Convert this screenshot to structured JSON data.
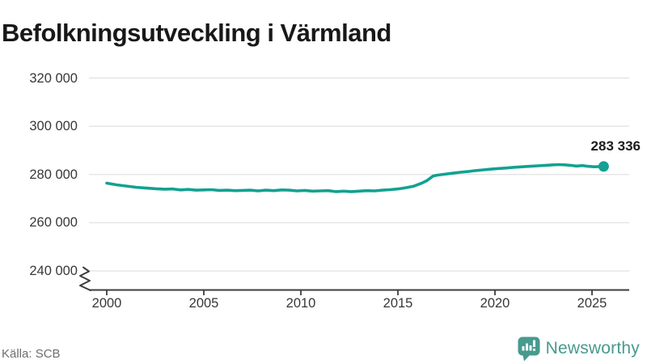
{
  "title": "Befolkningsutveckling i Värmland",
  "end_label": "283 336",
  "footer": {
    "source": "Källa: SCB",
    "brand": "Newsworthy"
  },
  "colors": {
    "line": "#12a192",
    "brand_teal": "#479a8e",
    "grid": "#e4e4e4",
    "axis": "#3d3d3d",
    "tick_text": "#383838",
    "title_text": "#181818",
    "source_text": "#6e6e6e"
  },
  "chart_data": {
    "type": "line",
    "title": "Befolkningsutveckling i Värmland",
    "xlabel": "",
    "ylabel": "",
    "grid": "horizontal",
    "legend_position": "none",
    "axis_break": true,
    "xlim": [
      1999.5,
      2026.5
    ],
    "ylim": [
      240000,
      330000
    ],
    "x_ticks": [
      {
        "value": 2000,
        "label": "2000"
      },
      {
        "value": 2005,
        "label": "2005"
      },
      {
        "value": 2010,
        "label": "2010"
      },
      {
        "value": 2015,
        "label": "2015"
      },
      {
        "value": 2020,
        "label": "2020"
      },
      {
        "value": 2025,
        "label": "2025"
      }
    ],
    "y_ticks": [
      {
        "value": 320000,
        "label": "320 000"
      },
      {
        "value": 300000,
        "label": "300 000"
      },
      {
        "value": 280000,
        "label": "280 000"
      },
      {
        "value": 260000,
        "label": "260 000"
      },
      {
        "value": 240000,
        "label": "240 000"
      }
    ],
    "end_point": {
      "x": 2025.6,
      "value": 283336,
      "label": "283 336"
    },
    "series": [
      {
        "name": "Befolkning i Värmland",
        "color": "#12a192",
        "points": [
          [
            2000.0,
            276400
          ],
          [
            2000.5,
            275700
          ],
          [
            2001.0,
            275200
          ],
          [
            2001.5,
            274700
          ],
          [
            2002.0,
            274400
          ],
          [
            2002.5,
            274100
          ],
          [
            2003.0,
            273900
          ],
          [
            2003.4,
            274000
          ],
          [
            2003.8,
            273600
          ],
          [
            2004.2,
            273800
          ],
          [
            2004.6,
            273500
          ],
          [
            2005.0,
            273600
          ],
          [
            2005.4,
            273700
          ],
          [
            2005.8,
            273400
          ],
          [
            2006.2,
            273500
          ],
          [
            2006.6,
            273300
          ],
          [
            2007.0,
            273400
          ],
          [
            2007.4,
            273500
          ],
          [
            2007.8,
            273200
          ],
          [
            2008.2,
            273500
          ],
          [
            2008.6,
            273300
          ],
          [
            2009.0,
            273600
          ],
          [
            2009.4,
            273500
          ],
          [
            2009.8,
            273200
          ],
          [
            2010.2,
            273400
          ],
          [
            2010.6,
            273100
          ],
          [
            2011.0,
            273200
          ],
          [
            2011.4,
            273300
          ],
          [
            2011.8,
            272900
          ],
          [
            2012.2,
            273100
          ],
          [
            2012.6,
            272900
          ],
          [
            2013.0,
            273100
          ],
          [
            2013.4,
            273300
          ],
          [
            2013.8,
            273200
          ],
          [
            2014.2,
            273500
          ],
          [
            2014.6,
            273700
          ],
          [
            2015.0,
            274000
          ],
          [
            2015.4,
            274500
          ],
          [
            2015.8,
            275100
          ],
          [
            2016.2,
            276300
          ],
          [
            2016.5,
            277500
          ],
          [
            2016.8,
            279300
          ],
          [
            2017.0,
            279700
          ],
          [
            2017.4,
            280100
          ],
          [
            2017.8,
            280500
          ],
          [
            2018.2,
            280900
          ],
          [
            2018.6,
            281200
          ],
          [
            2019.0,
            281600
          ],
          [
            2019.4,
            281900
          ],
          [
            2019.8,
            282200
          ],
          [
            2020.2,
            282500
          ],
          [
            2020.6,
            282700
          ],
          [
            2021.0,
            283000
          ],
          [
            2021.4,
            283200
          ],
          [
            2021.8,
            283400
          ],
          [
            2022.2,
            283600
          ],
          [
            2022.6,
            283800
          ],
          [
            2023.0,
            284000
          ],
          [
            2023.3,
            284100
          ],
          [
            2023.6,
            284000
          ],
          [
            2023.9,
            283800
          ],
          [
            2024.2,
            283500
          ],
          [
            2024.5,
            283700
          ],
          [
            2024.8,
            283400
          ],
          [
            2025.1,
            283200
          ],
          [
            2025.35,
            283300
          ],
          [
            2025.6,
            283336
          ]
        ]
      }
    ]
  }
}
